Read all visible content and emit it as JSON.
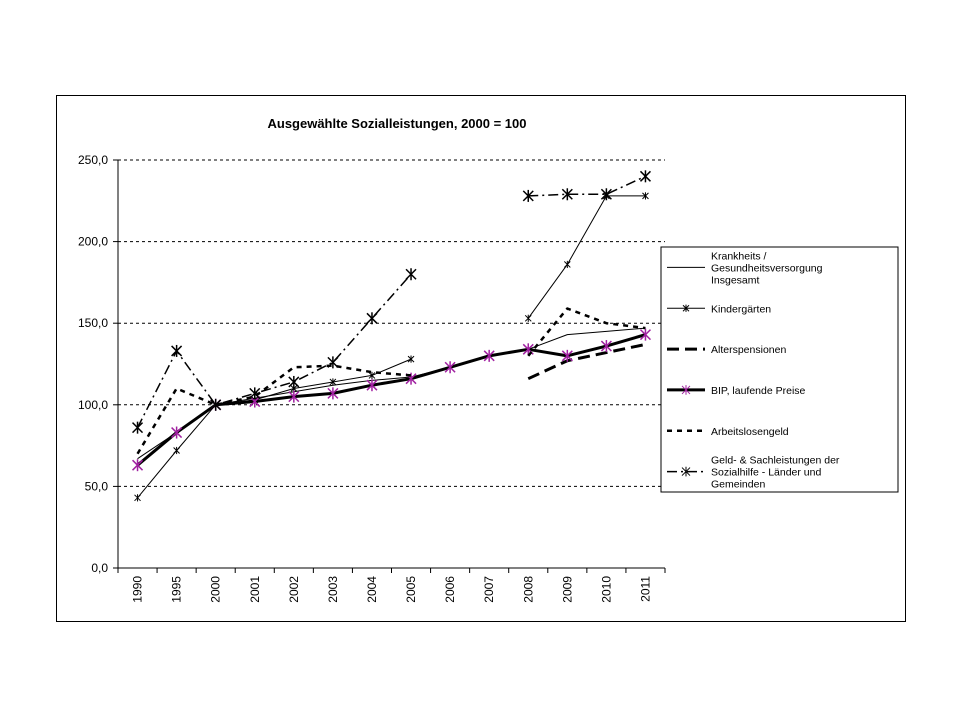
{
  "chart_data": {
    "type": "line",
    "title": "Ausgewählte Sozialleistungen, 2000 = 100",
    "xlabel": "",
    "ylabel": "",
    "categories": [
      "1990",
      "1995",
      "2000",
      "2001",
      "2002",
      "2003",
      "2004",
      "2005",
      "2006",
      "2007",
      "2008",
      "2009",
      "2010",
      "2011"
    ],
    "ylim": [
      0,
      250
    ],
    "yticks": [
      "0,0",
      "50,0",
      "100,0",
      "150,0",
      "200,0",
      "250,0"
    ],
    "grid": "horizontal dashed",
    "legend_position": "right",
    "series": [
      {
        "name": "Krankheits / Gesundheitsversorgung Insgesamt",
        "style": "thin-solid",
        "marker": "none",
        "color": "#000000",
        "values": [
          67,
          83,
          100,
          104,
          108,
          112,
          115,
          117,
          123,
          130,
          134,
          143,
          145,
          147
        ]
      },
      {
        "name": "Kindergärten",
        "style": "thin-solid",
        "marker": "small-star",
        "color": "#000000",
        "values": [
          43,
          72,
          100,
          103,
          110,
          114,
          118,
          128,
          null,
          null,
          153,
          186,
          228,
          228
        ]
      },
      {
        "name": "Alterspensionen",
        "style": "long-dash",
        "marker": "none",
        "color": "#000000",
        "values": [
          null,
          null,
          null,
          null,
          null,
          null,
          null,
          null,
          null,
          null,
          116,
          127,
          132,
          137
        ]
      },
      {
        "name": "BIP, laufende Preise",
        "style": "thick-solid",
        "marker": "star",
        "color": "#000000",
        "marker_color": "#a020a0",
        "values": [
          63,
          83,
          100,
          102,
          105,
          107,
          112,
          116,
          123,
          130,
          134,
          130,
          136,
          143
        ]
      },
      {
        "name": "Arbeitslosengeld",
        "style": "short-dash",
        "marker": "none",
        "color": "#000000",
        "values": [
          70,
          110,
          100,
          105,
          123,
          124,
          120,
          118,
          null,
          null,
          130,
          159,
          150,
          147
        ]
      },
      {
        "name": "Geld- & Sachleistungen der Sozialhilfe - Länder und Gemeinden",
        "style": "dash-dot",
        "marker": "star",
        "color": "#000000",
        "values": [
          86,
          133,
          100,
          107,
          114,
          126,
          153,
          180,
          null,
          null,
          228,
          229,
          229,
          240
        ]
      }
    ]
  }
}
